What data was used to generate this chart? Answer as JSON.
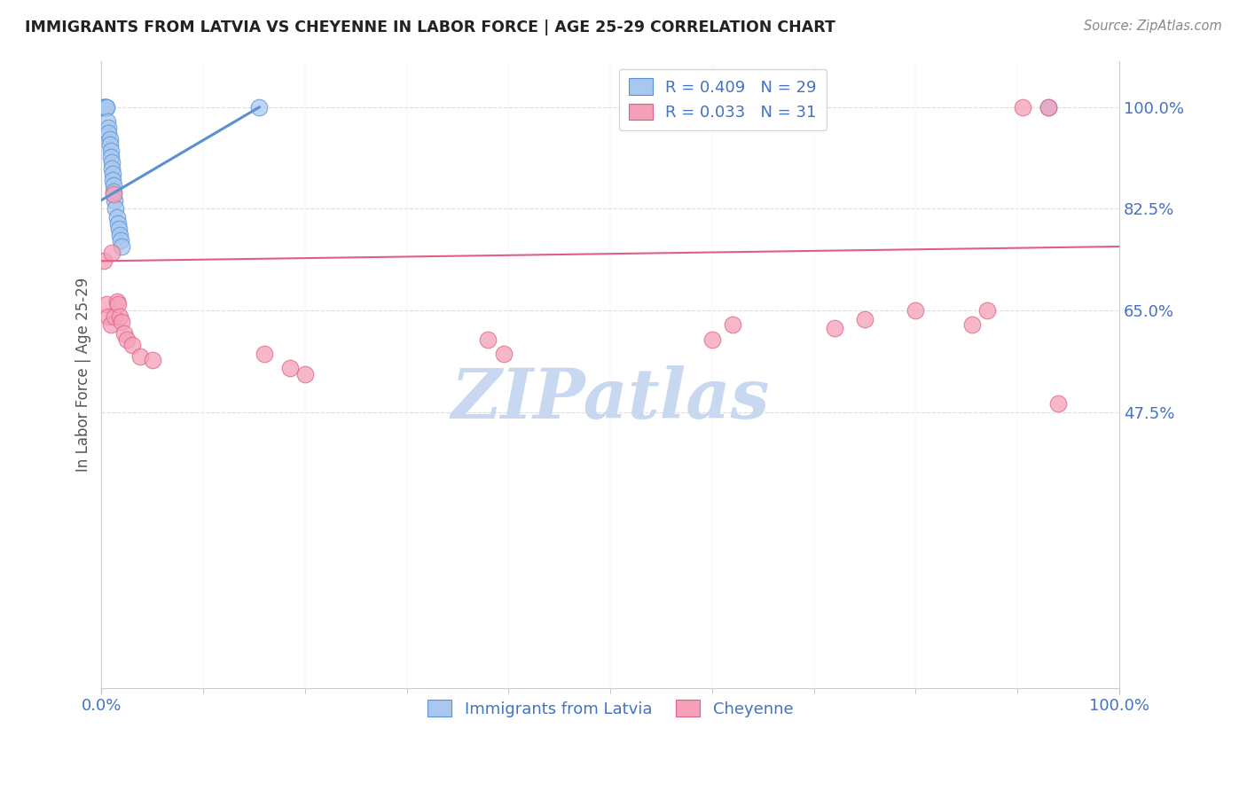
{
  "title": "IMMIGRANTS FROM LATVIA VS CHEYENNE IN LABOR FORCE | AGE 25-29 CORRELATION CHART",
  "source": "Source: ZipAtlas.com",
  "ylabel": "In Labor Force | Age 25-29",
  "watermark": "ZIPatlas",
  "xlim": [
    0.0,
    1.0
  ],
  "ylim": [
    0.0,
    1.08
  ],
  "ytick_vals": [
    0.475,
    0.65,
    0.825,
    1.0
  ],
  "ytick_labels": [
    "47.5%",
    "65.0%",
    "82.5%",
    "100.0%"
  ],
  "xtick_vals": [
    0.0,
    1.0
  ],
  "xtick_labels": [
    "0.0%",
    "100.0%"
  ],
  "xtick_minor": [
    0.1,
    0.2,
    0.3,
    0.4,
    0.5,
    0.6,
    0.7,
    0.8,
    0.9
  ],
  "blue_x": [
    0.001,
    0.002,
    0.003,
    0.004,
    0.005,
    0.005,
    0.006,
    0.007,
    0.007,
    0.008,
    0.008,
    0.009,
    0.009,
    0.01,
    0.01,
    0.011,
    0.011,
    0.012,
    0.012,
    0.013,
    0.014,
    0.015,
    0.016,
    0.017,
    0.018,
    0.019,
    0.02,
    0.155,
    0.93
  ],
  "blue_y": [
    1.0,
    1.0,
    1.0,
    1.0,
    1.0,
    1.0,
    0.975,
    0.965,
    0.955,
    0.945,
    0.935,
    0.925,
    0.915,
    0.905,
    0.895,
    0.885,
    0.875,
    0.865,
    0.855,
    0.84,
    0.825,
    0.81,
    0.8,
    0.79,
    0.78,
    0.77,
    0.76,
    1.0,
    1.0
  ],
  "pink_x": [
    0.002,
    0.005,
    0.007,
    0.009,
    0.01,
    0.012,
    0.013,
    0.015,
    0.016,
    0.018,
    0.02,
    0.022,
    0.025,
    0.03,
    0.038,
    0.05,
    0.16,
    0.185,
    0.2,
    0.38,
    0.395,
    0.6,
    0.62,
    0.75,
    0.8,
    0.855,
    0.87,
    0.905,
    0.93,
    0.94,
    0.72
  ],
  "pink_y": [
    0.735,
    0.66,
    0.64,
    0.625,
    0.75,
    0.85,
    0.64,
    0.665,
    0.66,
    0.64,
    0.63,
    0.61,
    0.6,
    0.59,
    0.57,
    0.565,
    0.575,
    0.55,
    0.54,
    0.6,
    0.575,
    0.6,
    0.625,
    0.635,
    0.65,
    0.625,
    0.65,
    1.0,
    1.0,
    0.49,
    0.62
  ],
  "blue_trend_x": [
    0.0,
    0.155
  ],
  "blue_trend_y": [
    0.84,
    1.0
  ],
  "pink_trend_x": [
    0.0,
    1.0
  ],
  "pink_trend_y": [
    0.735,
    0.76
  ],
  "grid_color": "#DDDDDD",
  "bg_color": "#FFFFFF",
  "blue_color": "#A8C8F0",
  "pink_color": "#F4A0B8",
  "blue_edge": "#5A90D0",
  "pink_edge": "#E06080",
  "title_color": "#222222",
  "ylabel_color": "#555555",
  "tick_color": "#4472C4",
  "watermark_color": "#C8D8F0",
  "source_color": "#888888",
  "legend_label_color": "#4472C4",
  "legend_blue_label": "R = 0.409   N = 29",
  "legend_pink_label": "R = 0.033   N = 31",
  "bottom_legend_blue": "Immigrants from Latvia",
  "bottom_legend_pink": "Cheyenne"
}
